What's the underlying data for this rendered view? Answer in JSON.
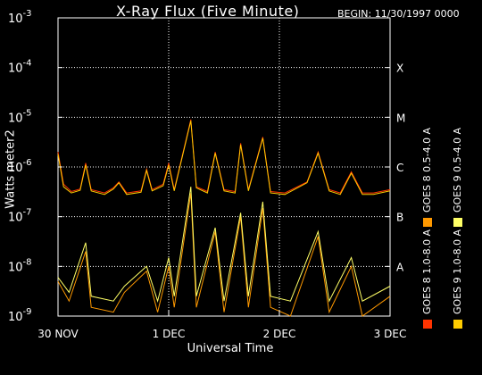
{
  "header": {
    "title": "X-Ray Flux (Five Minute)",
    "begin": "BEGIN: 11/30/1997 0000"
  },
  "chart_data": {
    "type": "line",
    "title": "X-Ray Flux (Five Minute)",
    "xlabel": "Universal Time",
    "ylabel": "Watts meter2",
    "yscale": "log",
    "ylim": [
      1e-09,
      0.001
    ],
    "y_ticks": [
      {
        "exp": "-3",
        "value": 0.001
      },
      {
        "exp": "-4",
        "value": 0.0001
      },
      {
        "exp": "-5",
        "value": 1e-05
      },
      {
        "exp": "-6",
        "value": 1e-06
      },
      {
        "exp": "-7",
        "value": 1e-07
      },
      {
        "exp": "-8",
        "value": 1e-08
      },
      {
        "exp": "-9",
        "value": 1e-09
      }
    ],
    "x_ticks": [
      "30 NOV",
      "1 DEC",
      "2 DEC",
      "3 DEC"
    ],
    "xlim_days": [
      0,
      3
    ],
    "flare_classes": [
      {
        "label": "X",
        "value": 0.0001
      },
      {
        "label": "M",
        "value": 1e-05
      },
      {
        "label": "C",
        "value": 1e-06
      },
      {
        "label": "B",
        "value": 1e-07
      },
      {
        "label": "A",
        "value": 1e-08
      }
    ],
    "grid": true,
    "legend_position": "right, rotated",
    "series": [
      {
        "name": "GOES 8 1.0-8.0 A",
        "color": "#ff3300",
        "band": "long",
        "points": [
          [
            0.0,
            2e-06
          ],
          [
            0.05,
            4.5e-07
          ],
          [
            0.12,
            3.2e-07
          ],
          [
            0.2,
            3.6e-07
          ],
          [
            0.25,
            1.2e-06
          ],
          [
            0.3,
            3.5e-07
          ],
          [
            0.42,
            3e-07
          ],
          [
            0.5,
            3.8e-07
          ],
          [
            0.55,
            5e-07
          ],
          [
            0.62,
            3e-07
          ],
          [
            0.75,
            3.3e-07
          ],
          [
            0.8,
            9e-07
          ],
          [
            0.85,
            3.5e-07
          ],
          [
            0.95,
            4.5e-07
          ],
          [
            1.0,
            1.2e-06
          ],
          [
            1.05,
            3.5e-07
          ],
          [
            1.2,
            9e-06
          ],
          [
            1.25,
            4e-07
          ],
          [
            1.35,
            3.2e-07
          ],
          [
            1.42,
            2e-06
          ],
          [
            1.5,
            3.5e-07
          ],
          [
            1.6,
            3.2e-07
          ],
          [
            1.65,
            3e-06
          ],
          [
            1.72,
            3.5e-07
          ],
          [
            1.85,
            4e-06
          ],
          [
            1.92,
            3.2e-07
          ],
          [
            2.05,
            3e-07
          ],
          [
            2.25,
            5e-07
          ],
          [
            2.35,
            2e-06
          ],
          [
            2.45,
            3.5e-07
          ],
          [
            2.55,
            3e-07
          ],
          [
            2.65,
            8e-07
          ],
          [
            2.75,
            3e-07
          ],
          [
            2.85,
            3e-07
          ],
          [
            3.0,
            3.5e-07
          ]
        ]
      },
      {
        "name": "GOES 8 0.5-4.0 A",
        "color": "#ff9900",
        "band": "short",
        "points": [
          [
            0.0,
            5e-09
          ],
          [
            0.1,
            2e-09
          ],
          [
            0.25,
            2e-08
          ],
          [
            0.3,
            1.5e-09
          ],
          [
            0.5,
            1.2e-09
          ],
          [
            0.6,
            3e-09
          ],
          [
            0.8,
            8e-09
          ],
          [
            0.9,
            1.2e-09
          ],
          [
            1.0,
            1e-08
          ],
          [
            1.05,
            1.5e-09
          ],
          [
            1.2,
            3e-07
          ],
          [
            1.25,
            1.5e-09
          ],
          [
            1.42,
            5e-08
          ],
          [
            1.5,
            1.2e-09
          ],
          [
            1.65,
            1e-07
          ],
          [
            1.72,
            1.5e-09
          ],
          [
            1.85,
            1.5e-07
          ],
          [
            1.92,
            1.5e-09
          ],
          [
            2.1,
            1e-09
          ],
          [
            2.35,
            4e-08
          ],
          [
            2.45,
            1.2e-09
          ],
          [
            2.65,
            1e-08
          ],
          [
            2.75,
            1e-09
          ],
          [
            3.0,
            2.5e-09
          ]
        ]
      },
      {
        "name": "GOES 9 1.0-8.0 A",
        "color": "#ffcc00",
        "band": "long",
        "points": [
          [
            0.0,
            1.8e-06
          ],
          [
            0.05,
            4e-07
          ],
          [
            0.12,
            3e-07
          ],
          [
            0.2,
            3.4e-07
          ],
          [
            0.25,
            1.1e-06
          ],
          [
            0.3,
            3.3e-07
          ],
          [
            0.42,
            2.8e-07
          ],
          [
            0.5,
            3.6e-07
          ],
          [
            0.55,
            4.8e-07
          ],
          [
            0.62,
            2.8e-07
          ],
          [
            0.75,
            3.1e-07
          ],
          [
            0.8,
            8.5e-07
          ],
          [
            0.85,
            3.3e-07
          ],
          [
            0.95,
            4.2e-07
          ],
          [
            1.0,
            1.1e-06
          ],
          [
            1.05,
            3.3e-07
          ],
          [
            1.2,
            8.5e-06
          ],
          [
            1.25,
            3.8e-07
          ],
          [
            1.35,
            3e-07
          ],
          [
            1.42,
            1.9e-06
          ],
          [
            1.5,
            3.3e-07
          ],
          [
            1.6,
            3e-07
          ],
          [
            1.65,
            2.8e-06
          ],
          [
            1.72,
            3.3e-07
          ],
          [
            1.85,
            3.8e-06
          ],
          [
            1.92,
            3e-07
          ],
          [
            2.05,
            2.8e-07
          ],
          [
            2.25,
            4.8e-07
          ],
          [
            2.35,
            1.9e-06
          ],
          [
            2.45,
            3.3e-07
          ],
          [
            2.55,
            2.8e-07
          ],
          [
            2.65,
            7.5e-07
          ],
          [
            2.75,
            2.8e-07
          ],
          [
            2.85,
            2.8e-07
          ],
          [
            3.0,
            3.3e-07
          ]
        ]
      },
      {
        "name": "GOES 9 0.5-4.0 A",
        "color": "#ffff66",
        "band": "short",
        "points": [
          [
            0.0,
            6e-09
          ],
          [
            0.1,
            3e-09
          ],
          [
            0.25,
            3e-08
          ],
          [
            0.3,
            2.5e-09
          ],
          [
            0.5,
            2e-09
          ],
          [
            0.6,
            4e-09
          ],
          [
            0.8,
            1e-08
          ],
          [
            0.9,
            2e-09
          ],
          [
            1.0,
            1.5e-08
          ],
          [
            1.05,
            2.5e-09
          ],
          [
            1.2,
            4e-07
          ],
          [
            1.25,
            2.5e-09
          ],
          [
            1.42,
            6e-08
          ],
          [
            1.5,
            2e-09
          ],
          [
            1.65,
            1.2e-07
          ],
          [
            1.72,
            2.5e-09
          ],
          [
            1.85,
            2e-07
          ],
          [
            1.92,
            2.5e-09
          ],
          [
            2.1,
            2e-09
          ],
          [
            2.35,
            5e-08
          ],
          [
            2.45,
            2e-09
          ],
          [
            2.65,
            1.5e-08
          ],
          [
            2.75,
            2e-09
          ],
          [
            3.0,
            4e-09
          ]
        ]
      }
    ]
  }
}
